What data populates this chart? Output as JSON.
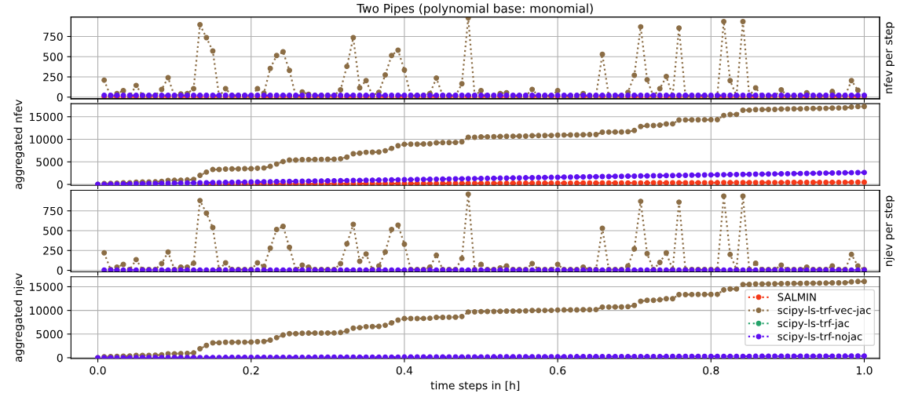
{
  "chart_data": [
    {
      "type": "line",
      "title": "Two Pipes (polynomial base: monomial)",
      "y2label": "nfev per step",
      "marker": "circle",
      "line_style": "dotted",
      "grid": true,
      "tick_labels": "y",
      "xlim": [
        -0.035,
        1.02
      ],
      "ylim": [
        -20,
        990
      ],
      "yticks": [
        0,
        250,
        500,
        750
      ],
      "x": [
        0.0083,
        0.0167,
        0.025,
        0.0333,
        0.0417,
        0.05,
        0.0583,
        0.0667,
        0.075,
        0.0833,
        0.0917,
        0.1,
        0.1083,
        0.1167,
        0.125,
        0.1333,
        0.1417,
        0.15,
        0.1583,
        0.1667,
        0.175,
        0.1833,
        0.1917,
        0.2,
        0.2083,
        0.2167,
        0.225,
        0.2333,
        0.2417,
        0.25,
        0.2583,
        0.2667,
        0.275,
        0.2833,
        0.2917,
        0.3,
        0.3083,
        0.3167,
        0.325,
        0.3333,
        0.3417,
        0.35,
        0.3583,
        0.3667,
        0.375,
        0.3833,
        0.3917,
        0.4,
        0.4083,
        0.4167,
        0.425,
        0.4333,
        0.4417,
        0.45,
        0.4583,
        0.4667,
        0.475,
        0.4833,
        0.4917,
        0.5,
        0.5083,
        0.5167,
        0.525,
        0.5333,
        0.5417,
        0.55,
        0.5583,
        0.5667,
        0.575,
        0.5833,
        0.5917,
        0.6,
        0.6083,
        0.6167,
        0.625,
        0.6333,
        0.6417,
        0.65,
        0.6583,
        0.6667,
        0.675,
        0.6833,
        0.6917,
        0.7,
        0.7083,
        0.7167,
        0.725,
        0.7333,
        0.7417,
        0.75,
        0.7583,
        0.7667,
        0.775,
        0.7833,
        0.7917,
        0.8,
        0.8083,
        0.8167,
        0.825,
        0.8333,
        0.8417,
        0.85,
        0.8583,
        0.8667,
        0.875,
        0.8833,
        0.8917,
        0.9,
        0.9083,
        0.9167,
        0.925,
        0.9333,
        0.9417,
        0.95,
        0.9583,
        0.9667,
        0.975,
        0.9833,
        0.9917,
        1
      ],
      "series": [
        {
          "color": "#f53a1a",
          "values": [
            4,
            4,
            4,
            4,
            4,
            4,
            4,
            4,
            4,
            4,
            4,
            4,
            4,
            4,
            4,
            4,
            4,
            4,
            4,
            4,
            4,
            4,
            4,
            4,
            4,
            4,
            4,
            4,
            4,
            4,
            4,
            4,
            4,
            4,
            4,
            4,
            4,
            4,
            4,
            4,
            4,
            4,
            4,
            4,
            4,
            4,
            4,
            4,
            4,
            4,
            4,
            4,
            4,
            4,
            4,
            4,
            4,
            4,
            4,
            4,
            4,
            4,
            4,
            4,
            4,
            4,
            4,
            4,
            4,
            4,
            4,
            4,
            4,
            4,
            4,
            4,
            4,
            4,
            4,
            4,
            4,
            4,
            4,
            4,
            4,
            4,
            4,
            4,
            4,
            4,
            4,
            4,
            4,
            4,
            4,
            4,
            4,
            4,
            4,
            4,
            4,
            4,
            4,
            4,
            4,
            4,
            4,
            4,
            4,
            4,
            4,
            4,
            4,
            4,
            4,
            4,
            4,
            4,
            4,
            4
          ]
        },
        {
          "color": "#8b6d45",
          "values": [
            210,
            10,
            45,
            80,
            15,
            145,
            20,
            15,
            20,
            95,
            240,
            15,
            40,
            45,
            105,
            895,
            735,
            570,
            10,
            105,
            20,
            20,
            20,
            10,
            105,
            50,
            355,
            515,
            560,
            330,
            10,
            65,
            35,
            20,
            20,
            20,
            20,
            90,
            380,
            735,
            115,
            205,
            20,
            60,
            275,
            515,
            580,
            335,
            15,
            20,
            20,
            45,
            235,
            20,
            20,
            15,
            165,
            980,
            20,
            80,
            15,
            15,
            45,
            55,
            15,
            15,
            15,
            95,
            15,
            15,
            15,
            80,
            15,
            15,
            15,
            45,
            15,
            15,
            530,
            10,
            15,
            15,
            60,
            270,
            870,
            215,
            10,
            105,
            255,
            15,
            855,
            10,
            15,
            15,
            15,
            10,
            15,
            935,
            205,
            15,
            935,
            15,
            115,
            15,
            15,
            15,
            90,
            15,
            15,
            15,
            55,
            15,
            15,
            15,
            70,
            15,
            15,
            205,
            85,
            15
          ]
        },
        {
          "color": "#5e10f0",
          "values": [
            22,
            22,
            22,
            22,
            22,
            22,
            22,
            22,
            22,
            22,
            22,
            22,
            22,
            22,
            22,
            22,
            22,
            22,
            22,
            22,
            22,
            22,
            22,
            22,
            22,
            22,
            22,
            22,
            22,
            22,
            22,
            22,
            22,
            22,
            22,
            22,
            22,
            22,
            22,
            22,
            22,
            22,
            22,
            22,
            22,
            22,
            22,
            22,
            22,
            22,
            22,
            22,
            22,
            22,
            22,
            22,
            22,
            22,
            22,
            22,
            22,
            22,
            22,
            22,
            22,
            22,
            22,
            22,
            22,
            22,
            22,
            22,
            22,
            22,
            22,
            22,
            22,
            22,
            22,
            22,
            22,
            22,
            22,
            22,
            22,
            22,
            22,
            22,
            22,
            22,
            22,
            22,
            22,
            22,
            22,
            22,
            22,
            22,
            22,
            22,
            22,
            22,
            22,
            22,
            22,
            22,
            22,
            22,
            22,
            22,
            22,
            22,
            22,
            22,
            22,
            22,
            22,
            22,
            22,
            22
          ]
        }
      ]
    },
    {
      "type": "line",
      "ylabel": "aggregated nfev",
      "marker": "circle",
      "line_style": "dotted",
      "grid": true,
      "tick_labels": "y",
      "xlim": [
        -0.035,
        1.02
      ],
      "ylim": [
        -200,
        17900
      ],
      "yticks": [
        0,
        5000,
        10000,
        15000
      ],
      "x": [
        0,
        0.0083,
        0.0167,
        0.025,
        0.0333,
        0.0417,
        0.05,
        0.0583,
        0.0667,
        0.075,
        0.0833,
        0.0917,
        0.1,
        0.1083,
        0.1167,
        0.125,
        0.1333,
        0.1417,
        0.15,
        0.1583,
        0.1667,
        0.175,
        0.1833,
        0.1917,
        0.2,
        0.2083,
        0.2167,
        0.225,
        0.2333,
        0.2417,
        0.25,
        0.2583,
        0.2667,
        0.275,
        0.2833,
        0.2917,
        0.3,
        0.3083,
        0.3167,
        0.325,
        0.3333,
        0.3417,
        0.35,
        0.3583,
        0.3667,
        0.375,
        0.3833,
        0.3917,
        0.4,
        0.4083,
        0.4167,
        0.425,
        0.4333,
        0.4417,
        0.45,
        0.4583,
        0.4667,
        0.475,
        0.4833,
        0.4917,
        0.5,
        0.5083,
        0.5167,
        0.525,
        0.5333,
        0.5417,
        0.55,
        0.5583,
        0.5667,
        0.575,
        0.5833,
        0.5917,
        0.6,
        0.6083,
        0.6167,
        0.625,
        0.6333,
        0.6417,
        0.65,
        0.6583,
        0.6667,
        0.675,
        0.6833,
        0.6917,
        0.7,
        0.7083,
        0.7167,
        0.725,
        0.7333,
        0.7417,
        0.75,
        0.7583,
        0.7667,
        0.775,
        0.7833,
        0.7917,
        0.8,
        0.8083,
        0.8167,
        0.825,
        0.8333,
        0.8417,
        0.85,
        0.8583,
        0.8667,
        0.875,
        0.8833,
        0.8917,
        0.9,
        0.9083,
        0.9167,
        0.925,
        0.9333,
        0.9417,
        0.95,
        0.9583,
        0.9667,
        0.975,
        0.9833,
        0.9917,
        1
      ],
      "series": [
        {
          "color": "#f53a1a",
          "values": [
            null,
            null,
            null,
            null,
            null,
            null,
            null,
            null,
            null,
            null,
            null,
            null,
            null,
            null,
            null,
            null,
            64,
            68,
            72,
            76,
            80,
            84,
            88,
            92,
            96,
            100,
            104,
            108,
            112,
            116,
            120,
            124,
            128,
            132,
            136,
            140,
            144,
            148,
            152,
            156,
            160,
            164,
            168,
            172,
            176,
            180,
            184,
            188,
            192,
            196,
            200,
            204,
            208,
            212,
            216,
            220,
            224,
            228,
            232,
            236,
            240,
            244,
            248,
            252,
            256,
            260,
            264,
            268,
            272,
            276,
            280,
            284,
            288,
            292,
            296,
            300,
            304,
            308,
            312,
            316,
            320,
            324,
            328,
            332,
            336,
            340,
            344,
            348,
            352,
            356,
            360,
            364,
            368,
            372,
            376,
            380,
            384,
            388,
            392,
            396,
            400,
            404,
            408,
            412,
            416,
            420,
            424,
            428,
            432,
            436,
            440,
            444,
            448,
            452,
            456,
            460,
            464,
            468,
            472,
            476,
            480
          ]
        },
        {
          "color": "#8b6d45",
          "values": [
            0,
            210,
            220,
            265,
            345,
            360,
            505,
            525,
            540,
            560,
            655,
            895,
            910,
            950,
            995,
            1100,
            1995,
            2730,
            3300,
            3310,
            3415,
            3435,
            3455,
            3475,
            3485,
            3590,
            3640,
            3995,
            4510,
            5070,
            5400,
            5410,
            5475,
            5510,
            5530,
            5550,
            5570,
            5590,
            5680,
            6060,
            6795,
            6910,
            7115,
            7135,
            7195,
            7470,
            7985,
            8565,
            8900,
            8915,
            8935,
            8955,
            9000,
            9235,
            9255,
            9275,
            9290,
            9455,
            10435,
            10455,
            10535,
            10550,
            10565,
            10610,
            10665,
            10680,
            10695,
            10710,
            10805,
            10820,
            10835,
            10850,
            10930,
            10945,
            10960,
            10975,
            11020,
            11035,
            11050,
            11580,
            11590,
            11605,
            11620,
            11680,
            11950,
            12820,
            13035,
            13045,
            13150,
            13405,
            13420,
            14275,
            14285,
            14300,
            14315,
            14330,
            14340,
            14355,
            15290,
            15495,
            15510,
            16445,
            16460,
            16575,
            16590,
            16605,
            16620,
            16710,
            16725,
            16740,
            16755,
            16810,
            16825,
            16840,
            16855,
            16925,
            16940,
            16955,
            17160,
            17245,
            17260
          ]
        },
        {
          "color": "#5e10f0",
          "values": [
            0,
            22,
            44,
            66,
            88,
            110,
            132,
            154,
            176,
            198,
            220,
            242,
            264,
            286,
            308,
            330,
            352,
            374,
            396,
            418,
            440,
            462,
            484,
            506,
            528,
            550,
            572,
            594,
            616,
            638,
            660,
            682,
            704,
            726,
            748,
            770,
            792,
            814,
            836,
            858,
            880,
            902,
            924,
            946,
            968,
            990,
            1012,
            1034,
            1056,
            1078,
            1100,
            1122,
            1144,
            1166,
            1188,
            1210,
            1232,
            1254,
            1276,
            1298,
            1320,
            1342,
            1364,
            1386,
            1408,
            1430,
            1452,
            1474,
            1496,
            1518,
            1540,
            1562,
            1584,
            1606,
            1628,
            1650,
            1672,
            1694,
            1716,
            1738,
            1760,
            1782,
            1804,
            1826,
            1848,
            1870,
            1892,
            1914,
            1936,
            1958,
            1980,
            2002,
            2024,
            2046,
            2068,
            2090,
            2112,
            2134,
            2156,
            2178,
            2200,
            2222,
            2244,
            2266,
            2288,
            2310,
            2332,
            2354,
            2376,
            2398,
            2420,
            2442,
            2464,
            2486,
            2508,
            2530,
            2552,
            2574,
            2596,
            2618,
            2640
          ]
        }
      ]
    },
    {
      "type": "line",
      "y2label": "njev per step",
      "marker": "circle",
      "line_style": "dotted",
      "grid": true,
      "tick_labels": "y",
      "xlim": [
        -0.035,
        1.02
      ],
      "ylim": [
        -20,
        1010
      ],
      "yticks": [
        0,
        250,
        500,
        750
      ],
      "x": [
        0.0083,
        0.0167,
        0.025,
        0.0333,
        0.0417,
        0.05,
        0.0583,
        0.0667,
        0.075,
        0.0833,
        0.0917,
        0.1,
        0.1083,
        0.1167,
        0.125,
        0.1333,
        0.1417,
        0.15,
        0.1583,
        0.1667,
        0.175,
        0.1833,
        0.1917,
        0.2,
        0.2083,
        0.2167,
        0.225,
        0.2333,
        0.2417,
        0.25,
        0.2583,
        0.2667,
        0.275,
        0.2833,
        0.2917,
        0.3,
        0.3083,
        0.3167,
        0.325,
        0.3333,
        0.3417,
        0.35,
        0.3583,
        0.3667,
        0.375,
        0.3833,
        0.3917,
        0.4,
        0.4083,
        0.4167,
        0.425,
        0.4333,
        0.4417,
        0.45,
        0.4583,
        0.4667,
        0.475,
        0.4833,
        0.4917,
        0.5,
        0.5083,
        0.5167,
        0.525,
        0.5333,
        0.5417,
        0.55,
        0.5583,
        0.5667,
        0.575,
        0.5833,
        0.5917,
        0.6,
        0.6083,
        0.6167,
        0.625,
        0.6333,
        0.6417,
        0.65,
        0.6583,
        0.6667,
        0.675,
        0.6833,
        0.6917,
        0.7,
        0.7083,
        0.7167,
        0.725,
        0.7333,
        0.7417,
        0.75,
        0.7583,
        0.7667,
        0.775,
        0.7833,
        0.7917,
        0.8,
        0.8083,
        0.8167,
        0.825,
        0.8333,
        0.8417,
        0.85,
        0.8583,
        0.8667,
        0.875,
        0.8833,
        0.8917,
        0.9,
        0.9083,
        0.9167,
        0.925,
        0.9333,
        0.9417,
        0.95,
        0.9583,
        0.9667,
        0.975,
        0.9833,
        0.9917,
        1
      ],
      "series": [
        {
          "color": "#8b6d45",
          "values": [
            220,
            10,
            40,
            75,
            10,
            135,
            10,
            10,
            10,
            85,
            230,
            10,
            40,
            40,
            90,
            880,
            720,
            540,
            10,
            95,
            10,
            10,
            10,
            10,
            95,
            50,
            280,
            515,
            555,
            290,
            10,
            65,
            40,
            10,
            10,
            10,
            10,
            85,
            335,
            580,
            115,
            205,
            10,
            55,
            230,
            515,
            570,
            330,
            10,
            10,
            10,
            40,
            190,
            10,
            10,
            10,
            150,
            960,
            10,
            75,
            10,
            10,
            30,
            55,
            10,
            10,
            10,
            85,
            10,
            10,
            10,
            75,
            10,
            10,
            10,
            40,
            10,
            10,
            530,
            10,
            10,
            10,
            55,
            270,
            870,
            210,
            10,
            100,
            220,
            10,
            860,
            10,
            10,
            10,
            10,
            10,
            10,
            935,
            200,
            10,
            935,
            10,
            90,
            10,
            10,
            10,
            65,
            10,
            10,
            10,
            40,
            10,
            10,
            10,
            55,
            10,
            10,
            200,
            55,
            10
          ]
        },
        {
          "color": "#5e10f0",
          "values": [
            3,
            3,
            3,
            3,
            3,
            3,
            3,
            3,
            3,
            3,
            3,
            3,
            3,
            3,
            3,
            3,
            3,
            3,
            3,
            3,
            3,
            3,
            3,
            3,
            3,
            3,
            3,
            3,
            3,
            3,
            3,
            3,
            3,
            3,
            3,
            3,
            3,
            3,
            3,
            3,
            3,
            3,
            3,
            3,
            3,
            3,
            3,
            3,
            3,
            3,
            3,
            3,
            3,
            3,
            3,
            3,
            3,
            3,
            3,
            3,
            3,
            3,
            3,
            3,
            3,
            3,
            3,
            3,
            3,
            3,
            3,
            3,
            3,
            3,
            3,
            3,
            3,
            3,
            3,
            3,
            3,
            3,
            3,
            3,
            3,
            3,
            3,
            3,
            3,
            3,
            3,
            3,
            3,
            3,
            3,
            3,
            3,
            3,
            3,
            3,
            3,
            3,
            3,
            3,
            3,
            3,
            3,
            3,
            3,
            3,
            3,
            3,
            3,
            3,
            3,
            3,
            3,
            3,
            3,
            3
          ]
        }
      ]
    },
    {
      "type": "line",
      "ylabel": "aggregated njev",
      "xlabel": "time steps in [h]",
      "marker": "circle",
      "line_style": "dotted",
      "grid": true,
      "legend": "right",
      "xlim": [
        -0.035,
        1.02
      ],
      "xticks": [
        {
          "value": 0,
          "label": "0.0"
        },
        0.2,
        0.4,
        0.6,
        0.8,
        {
          "value": 1,
          "label": "1.0"
        }
      ],
      "ylim": [
        -160,
        17100
      ],
      "yticks": [
        0,
        5000,
        10000,
        15000
      ],
      "x": [
        0,
        0.0083,
        0.0167,
        0.025,
        0.0333,
        0.0417,
        0.05,
        0.0583,
        0.0667,
        0.075,
        0.0833,
        0.0917,
        0.1,
        0.1083,
        0.1167,
        0.125,
        0.1333,
        0.1417,
        0.15,
        0.1583,
        0.1667,
        0.175,
        0.1833,
        0.1917,
        0.2,
        0.2083,
        0.2167,
        0.225,
        0.2333,
        0.2417,
        0.25,
        0.2583,
        0.2667,
        0.275,
        0.2833,
        0.2917,
        0.3,
        0.3083,
        0.3167,
        0.325,
        0.3333,
        0.3417,
        0.35,
        0.3583,
        0.3667,
        0.375,
        0.3833,
        0.3917,
        0.4,
        0.4083,
        0.4167,
        0.425,
        0.4333,
        0.4417,
        0.45,
        0.4583,
        0.4667,
        0.475,
        0.4833,
        0.4917,
        0.5,
        0.5083,
        0.5167,
        0.525,
        0.5333,
        0.5417,
        0.55,
        0.5583,
        0.5667,
        0.575,
        0.5833,
        0.5917,
        0.6,
        0.6083,
        0.6167,
        0.625,
        0.6333,
        0.6417,
        0.65,
        0.6583,
        0.6667,
        0.675,
        0.6833,
        0.6917,
        0.7,
        0.7083,
        0.7167,
        0.725,
        0.7333,
        0.7417,
        0.75,
        0.7583,
        0.7667,
        0.775,
        0.7833,
        0.7917,
        0.8,
        0.8083,
        0.8167,
        0.825,
        0.8333,
        0.8417,
        0.85,
        0.8583,
        0.8667,
        0.875,
        0.8833,
        0.8917,
        0.9,
        0.9083,
        0.9167,
        0.925,
        0.9333,
        0.9417,
        0.95,
        0.9583,
        0.9667,
        0.975,
        0.9833,
        0.9917,
        1
      ],
      "series": [
        {
          "name": "SALMIN",
          "color": "#f53a1a",
          "values": [
            null,
            null,
            null,
            null,
            null,
            null,
            null,
            null,
            null,
            null,
            null,
            null,
            null,
            null,
            null,
            null,
            null,
            null,
            null,
            null,
            null,
            null,
            null,
            null,
            null,
            null,
            null,
            null,
            null,
            null,
            null,
            null,
            null,
            null,
            null,
            null,
            null,
            null,
            null,
            null,
            null,
            null,
            null,
            null,
            null,
            null,
            null,
            null,
            null,
            null,
            null,
            null,
            null,
            null,
            null,
            null,
            null,
            null,
            null,
            null,
            null,
            null,
            null,
            null,
            null,
            null,
            null,
            null,
            null,
            null,
            null,
            null,
            null,
            null,
            null,
            null,
            null,
            null,
            null,
            null,
            null,
            null,
            null,
            null,
            null,
            null,
            null,
            null,
            null,
            null,
            null,
            null,
            null,
            null,
            null,
            null,
            null,
            null,
            null,
            null,
            null,
            null,
            null,
            null,
            null,
            null,
            null,
            null,
            null,
            null,
            null,
            null,
            null,
            null,
            null,
            null,
            null,
            null,
            null,
            null,
            null
          ]
        },
        {
          "name": "scipy-ls-trf-vec-jac",
          "color": "#8b6d45",
          "values": [
            0,
            220,
            230,
            270,
            345,
            355,
            490,
            500,
            510,
            520,
            605,
            835,
            845,
            885,
            925,
            1015,
            1895,
            2615,
            3155,
            3165,
            3260,
            3270,
            3280,
            3290,
            3300,
            3395,
            3445,
            3725,
            4240,
            4795,
            5085,
            5095,
            5160,
            5200,
            5210,
            5220,
            5230,
            5240,
            5325,
            5660,
            6240,
            6355,
            6560,
            6570,
            6625,
            6855,
            7370,
            7940,
            8270,
            8280,
            8290,
            8300,
            8340,
            8530,
            8540,
            8550,
            8560,
            8710,
            9670,
            9680,
            9755,
            9765,
            9775,
            9805,
            9860,
            9870,
            9880,
            9890,
            9975,
            9985,
            9995,
            10005,
            10080,
            10090,
            10100,
            10110,
            10150,
            10160,
            10170,
            10700,
            10710,
            10720,
            10730,
            10785,
            11055,
            11925,
            12135,
            12145,
            12245,
            12465,
            12475,
            13335,
            13345,
            13355,
            13365,
            13375,
            13385,
            13395,
            14330,
            14530,
            14540,
            15475,
            15485,
            15575,
            15585,
            15595,
            15605,
            15670,
            15680,
            15690,
            15700,
            15740,
            15750,
            15760,
            15770,
            15825,
            15835,
            15845,
            16045,
            16100,
            16110
          ]
        },
        {
          "name": "scipy-ls-trf-jac",
          "color": "#25a36a",
          "values": [
            null,
            null,
            null,
            null,
            null,
            null,
            null,
            null,
            null,
            null,
            null,
            null,
            null,
            null,
            null,
            null,
            null,
            null,
            null,
            null,
            null,
            null,
            null,
            null,
            null,
            null,
            null,
            null,
            null,
            null,
            null,
            null,
            null,
            null,
            null,
            null,
            null,
            null,
            null,
            null,
            null,
            null,
            null,
            null,
            null,
            null,
            null,
            null,
            null,
            null,
            null,
            null,
            null,
            null,
            null,
            null,
            null,
            null,
            null,
            null,
            null,
            null,
            null,
            null,
            null,
            null,
            null,
            null,
            null,
            null,
            null,
            null,
            null,
            null,
            null,
            null,
            null,
            null,
            null,
            null,
            null,
            null,
            null,
            null,
            null,
            null,
            null,
            null,
            null,
            null,
            null,
            null,
            null,
            null,
            null,
            null,
            null,
            null,
            null,
            null,
            null,
            null,
            null,
            null,
            null,
            null,
            null,
            null,
            null,
            null,
            null,
            null,
            null,
            null,
            null,
            null,
            null,
            null,
            null,
            null,
            null
          ]
        },
        {
          "name": "scipy-ls-trf-nojac",
          "color": "#5e10f0",
          "values": [
            0,
            3,
            6,
            9,
            12,
            15,
            18,
            21,
            24,
            27,
            30,
            33,
            36,
            39,
            42,
            45,
            48,
            51,
            54,
            57,
            60,
            63,
            66,
            69,
            72,
            75,
            78,
            81,
            84,
            87,
            90,
            93,
            96,
            99,
            102,
            105,
            108,
            111,
            114,
            117,
            120,
            123,
            126,
            129,
            132,
            135,
            138,
            141,
            144,
            147,
            150,
            153,
            156,
            159,
            162,
            165,
            168,
            171,
            174,
            177,
            180,
            183,
            186,
            189,
            192,
            195,
            198,
            201,
            204,
            207,
            210,
            213,
            216,
            219,
            222,
            225,
            228,
            231,
            234,
            237,
            240,
            243,
            246,
            249,
            252,
            255,
            258,
            261,
            264,
            267,
            270,
            273,
            276,
            279,
            282,
            285,
            288,
            291,
            294,
            297,
            300,
            303,
            306,
            309,
            312,
            315,
            318,
            321,
            324,
            327,
            330,
            333,
            336,
            339,
            342,
            345,
            348,
            351,
            354,
            357,
            360
          ]
        }
      ]
    }
  ]
}
